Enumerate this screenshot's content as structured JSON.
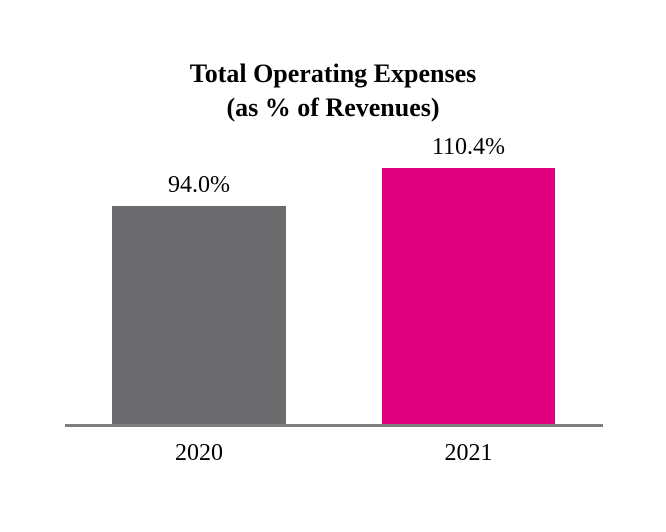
{
  "title": {
    "line1": "Total Operating Expenses",
    "line2": "(as % of Revenues)"
  },
  "chart_data": {
    "type": "bar",
    "title": "Total Operating Expenses (as % of Revenues)",
    "categories": [
      "2020",
      "2021"
    ],
    "values": [
      94.0,
      110.4
    ],
    "value_labels": [
      "94.0%",
      "110.4%"
    ],
    "xlabel": "",
    "ylabel": "",
    "ylim": [
      0,
      110.4
    ],
    "grid": false,
    "legend": false,
    "y_axis_visible": false,
    "bar_colors": [
      "#6C6C6E",
      "#E0007E"
    ],
    "axis_color": "#7F7F7F",
    "text_color": "#000000"
  }
}
